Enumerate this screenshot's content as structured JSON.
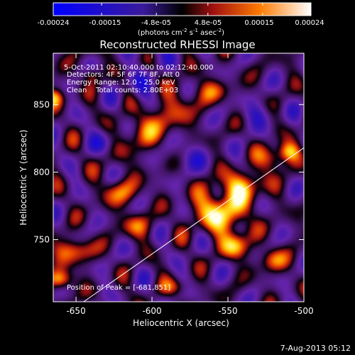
{
  "chart_data": {
    "type": "heatmap",
    "title": "Reconstructed RHESSI Image",
    "xlabel": "Heliocentric X (arcsec)",
    "ylabel": "Heliocentric Y (arcsec)",
    "xlim": [
      -665,
      -500
    ],
    "ylim": [
      704,
      888
    ],
    "x_ticks": [
      -650,
      -600,
      -550,
      -500
    ],
    "x_tick_labels": [
      "-650",
      "-600",
      "-550",
      "-500"
    ],
    "y_ticks": [
      750,
      800,
      850
    ],
    "y_tick_labels": [
      "750",
      "800",
      "850"
    ],
    "colorbar": {
      "range": [
        -0.00024,
        0.00024
      ],
      "tick_labels": [
        "-0.00024",
        "-0.00015",
        "-4.8e-05",
        "4.8e-05",
        "0.00015",
        "0.00024"
      ],
      "units_parts": [
        "(photons cm",
        "-2",
        " s",
        "-1",
        " asec",
        "-2",
        ")"
      ]
    },
    "annotations": {
      "time": "5-Oct-2011 02:10:40.000 to 02:12:40.000",
      "detectors": "Detectors: 4F 5F 6F 7F 8F, Att 0",
      "energy": "Energy Range: 12.0 - 25.0 keV",
      "clean": "Clean    Total counts: 2.80E+03",
      "peak": "Position of Peak = [-681,851]"
    },
    "date_stamp": "7-Aug-2013 05:12",
    "limb": [
      [
        -645,
        704
      ],
      [
        -500,
        818
      ]
    ],
    "blobs": [
      [
        -598,
        836,
        0.55,
        14,
        36,
        -0.9
      ],
      [
        -620,
        785,
        0.6,
        12,
        10,
        0
      ],
      [
        -610,
        760,
        0.55,
        10,
        9,
        0
      ],
      [
        -555,
        770,
        1.0,
        18,
        16,
        -0.6
      ],
      [
        -540,
        790,
        0.85,
        13,
        11,
        0
      ],
      [
        -545,
        745,
        0.8,
        9,
        9,
        0
      ],
      [
        -520,
        810,
        0.7,
        9,
        9,
        0
      ],
      [
        -510,
        815,
        0.75,
        7,
        7,
        0
      ],
      [
        -652,
        742,
        0.7,
        13,
        9,
        0
      ],
      [
        -660,
        720,
        0.9,
        8,
        7,
        0
      ],
      [
        -665,
        855,
        0.8,
        7,
        7,
        0
      ],
      [
        -640,
        872,
        0.45,
        6,
        6,
        0
      ],
      [
        -560,
        860,
        0.35,
        11,
        8,
        0
      ],
      [
        -520,
        735,
        0.6,
        9,
        9,
        0
      ],
      [
        -585,
        715,
        0.35,
        11,
        6,
        0
      ],
      [
        -630,
        822,
        -0.45,
        10,
        10,
        0
      ],
      [
        -575,
        812,
        -0.4,
        12,
        10,
        0
      ],
      [
        -608,
        862,
        -0.5,
        7,
        12,
        0
      ],
      [
        -530,
        843,
        -0.35,
        12,
        9,
        0
      ],
      [
        -640,
        900,
        0.3,
        20,
        12,
        0
      ],
      [
        -600,
        890,
        -0.3,
        14,
        8,
        0
      ]
    ],
    "waves": [
      [
        0.2,
        0.22,
        0.13,
        0.3
      ],
      [
        0.16,
        -0.14,
        0.21,
        1.1
      ],
      [
        0.14,
        0.25,
        -0.1,
        2.0
      ],
      [
        0.1,
        -0.27,
        -0.09,
        0.7
      ]
    ]
  }
}
